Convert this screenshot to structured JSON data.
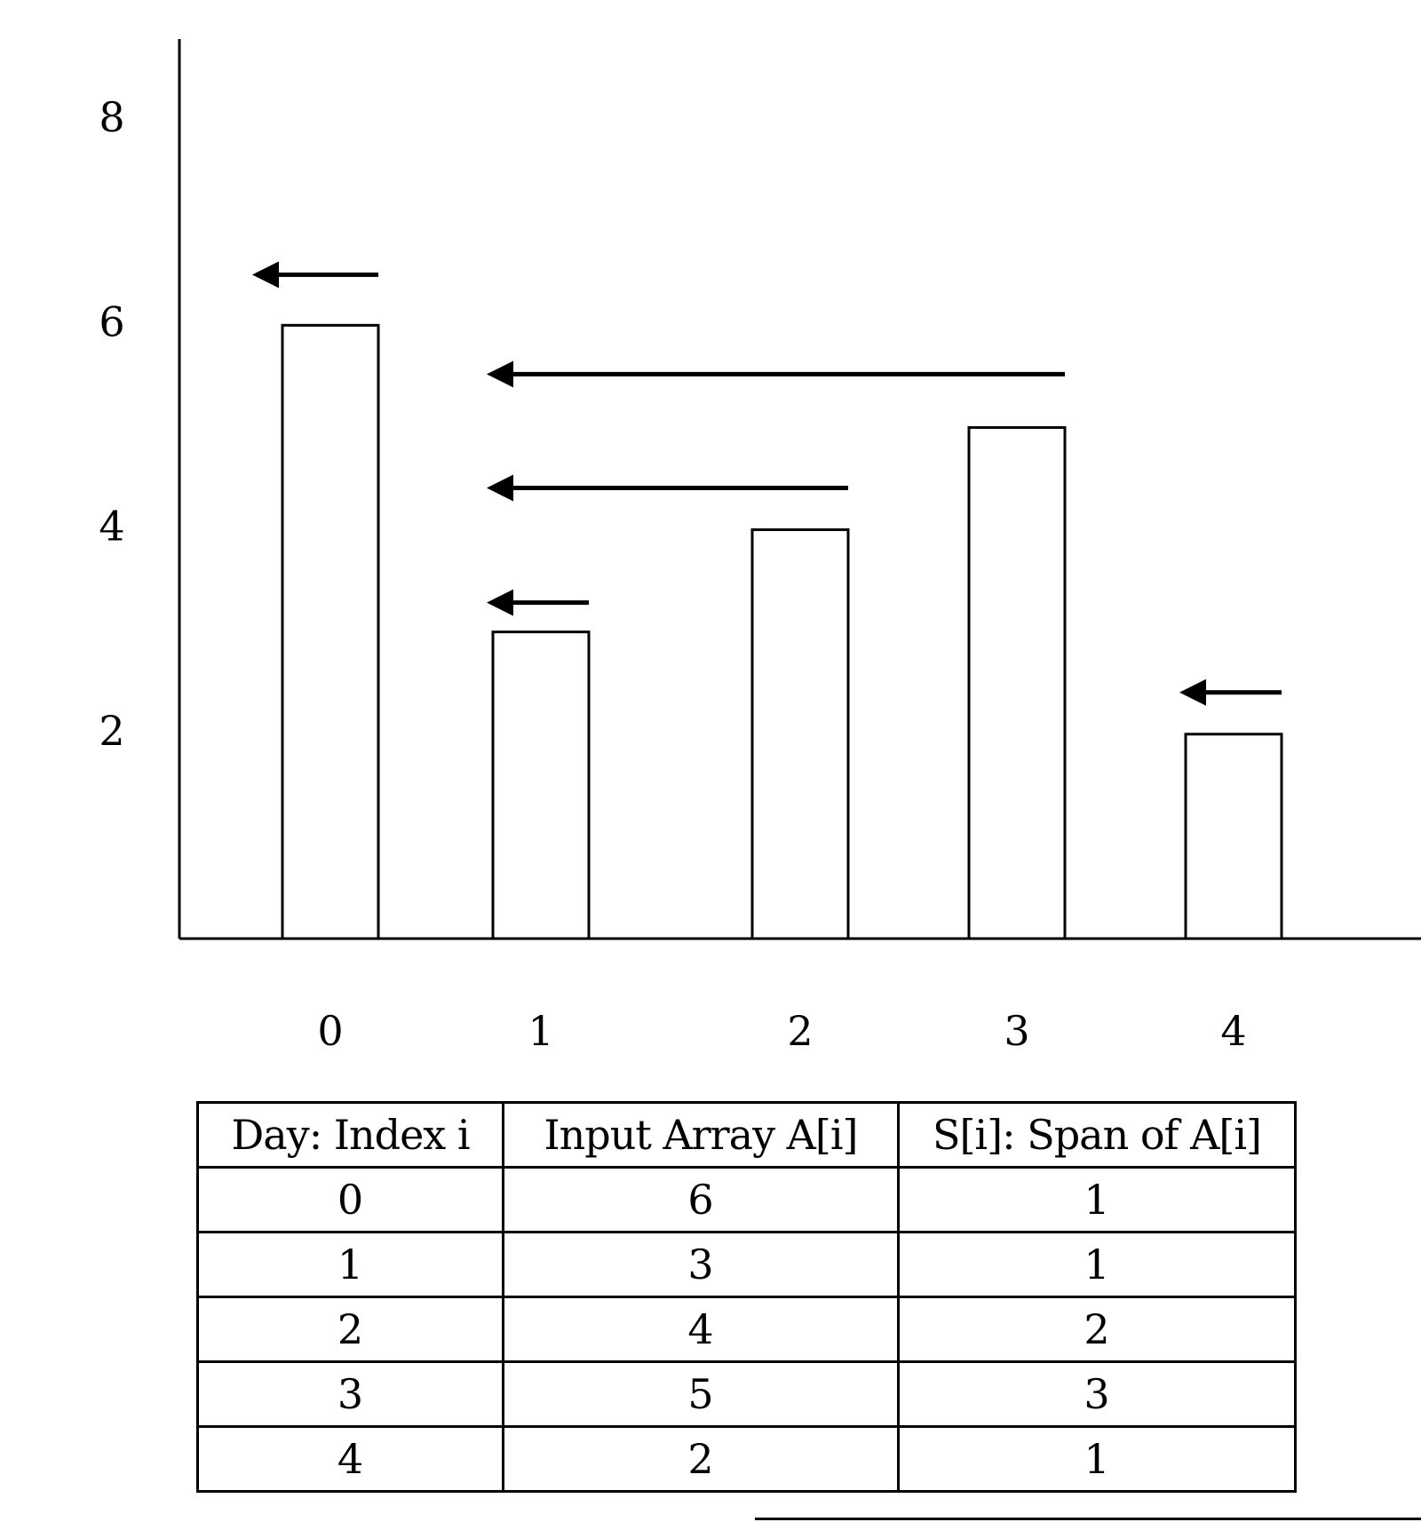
{
  "chart_data": {
    "type": "bar",
    "categories": [
      "0",
      "1",
      "2",
      "3",
      "4"
    ],
    "values": [
      6,
      3,
      4,
      5,
      2
    ],
    "spans": [
      1,
      1,
      2,
      3,
      1
    ],
    "y_ticks": [
      "2",
      "4",
      "6",
      "8"
    ],
    "ylim": [
      0,
      8.8
    ],
    "title": "",
    "xlabel": "",
    "ylabel": "",
    "grid": false,
    "legend": "none",
    "bar_fill": "#ffffff",
    "stroke_color": "#000000"
  },
  "table": {
    "headers": [
      "Day: Index i",
      "Input Array A[i]",
      "S[i]: Span of A[i]"
    ],
    "rows": [
      [
        "0",
        "6",
        "1"
      ],
      [
        "1",
        "3",
        "1"
      ],
      [
        "2",
        "4",
        "2"
      ],
      [
        "3",
        "5",
        "3"
      ],
      [
        "4",
        "2",
        "1"
      ]
    ]
  }
}
